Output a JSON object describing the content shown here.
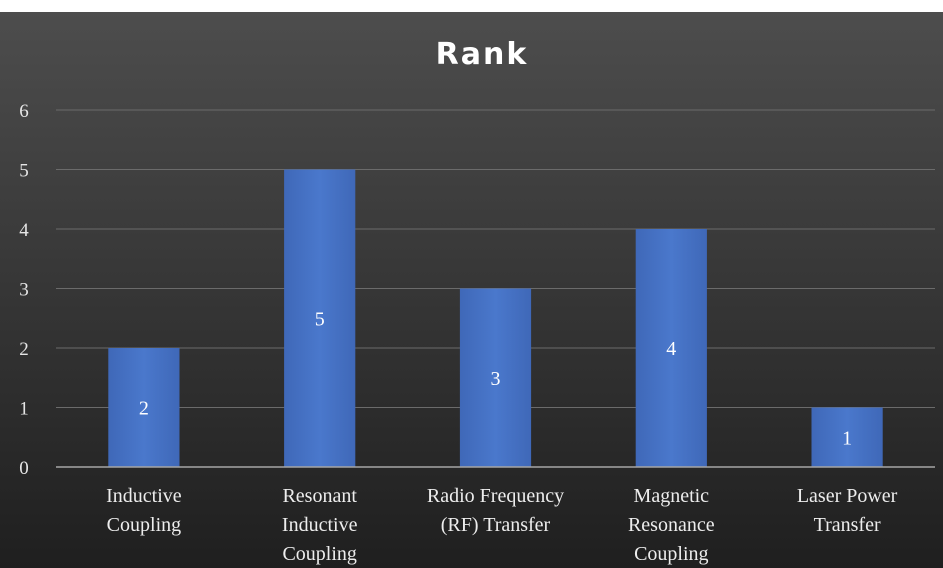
{
  "chart_data": {
    "type": "bar",
    "title": "Rank",
    "categories": [
      [
        "Inductive",
        "Coupling"
      ],
      [
        "Resonant",
        "Inductive",
        "Coupling"
      ],
      [
        "Radio Frequency",
        "(RF) Transfer"
      ],
      [
        "Magnetic",
        "Resonance",
        "Coupling"
      ],
      [
        "Laser Power",
        "Transfer"
      ]
    ],
    "values": [
      2,
      5,
      3,
      4,
      1
    ],
    "data_labels": [
      "2",
      "5",
      "3",
      "4",
      "1"
    ],
    "yticks": [
      "0",
      "1",
      "2",
      "3",
      "4",
      "5",
      "6"
    ],
    "ylim": [
      0,
      6
    ],
    "grid": true,
    "colors": {
      "background_top": "#4d4d4d",
      "background_bottom": "#1f1f1f",
      "bar": "#4472c4",
      "gridline": "#6b6b6b",
      "axis": "#a6a6a6"
    }
  }
}
